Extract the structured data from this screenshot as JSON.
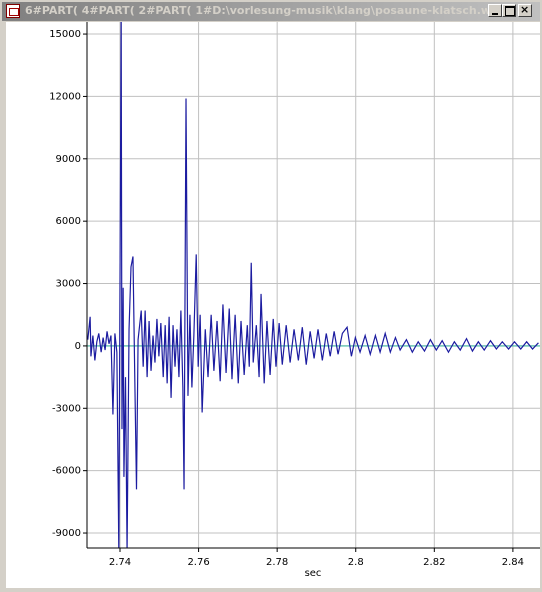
{
  "window": {
    "title": "6#PART( 4#PART( 2#PART( 1#D:\\vorlesung-musik\\klang\\posaune-klatsch.w..."
  },
  "chart_data": {
    "type": "line",
    "xlabel": "sec",
    "xlim": [
      2.7316,
      2.8469
    ],
    "ylim": [
      -9720,
      15580
    ],
    "xticks": [
      2.74,
      2.76,
      2.78,
      2.8,
      2.82,
      2.84
    ],
    "yticks": [
      -9000,
      -6000,
      -3000,
      0,
      3000,
      6000,
      9000,
      12000,
      15000
    ],
    "grid": true,
    "series": [
      {
        "color": "#1c1ca0",
        "x": [
          2.7318,
          2.7324,
          2.7326,
          2.7331,
          2.7336,
          2.7341,
          2.7346,
          2.7352,
          2.7357,
          2.7362,
          2.7367,
          2.7372,
          2.7377,
          2.7382,
          2.7387,
          2.7392,
          2.7397,
          2.7403,
          2.7405,
          2.7408,
          2.741,
          2.7414,
          2.7418,
          2.7423,
          2.7428,
          2.7433,
          2.7438,
          2.7442,
          2.7446,
          2.7454,
          2.7459,
          2.7464,
          2.7469,
          2.7474,
          2.7479,
          2.7484,
          2.7489,
          2.7494,
          2.7499,
          2.7504,
          2.751,
          2.7515,
          2.752,
          2.7525,
          2.753,
          2.7535,
          2.754,
          2.7545,
          2.755,
          2.7555,
          2.756,
          2.7563,
          2.7568,
          2.7573,
          2.7578,
          2.7583,
          2.7588,
          2.7594,
          2.7599,
          2.7604,
          2.7609,
          2.7617,
          2.7624,
          2.7632,
          2.7639,
          2.7647,
          2.7655,
          2.7662,
          2.767,
          2.7678,
          2.7685,
          2.7693,
          2.7701,
          2.7708,
          2.7716,
          2.7724,
          2.7729,
          2.7734,
          2.7739,
          2.7747,
          2.7754,
          2.7759,
          2.7767,
          2.7774,
          2.7782,
          2.779,
          2.7797,
          2.7805,
          2.7813,
          2.7823,
          2.7833,
          2.7843,
          2.7854,
          2.7864,
          2.7874,
          2.7884,
          2.7894,
          2.7904,
          2.7915,
          2.7925,
          2.7935,
          2.7945,
          2.7955,
          2.7966,
          2.7978,
          2.7989,
          2.7999,
          2.8011,
          2.8024,
          2.8037,
          2.805,
          2.8062,
          2.8075,
          2.8088,
          2.8101,
          2.8113,
          2.8129,
          2.8144,
          2.8159,
          2.8175,
          2.819,
          2.8205,
          2.822,
          2.8236,
          2.8251,
          2.8266,
          2.8282,
          2.8297,
          2.8312,
          2.8327,
          2.8343,
          2.8358,
          2.8373,
          2.8389,
          2.8404,
          2.842,
          2.8435,
          2.845,
          2.8465
        ],
        "values": [
          300,
          1400,
          -500,
          500,
          -700,
          200,
          600,
          -300,
          400,
          -200,
          700,
          100,
          500,
          -3300,
          600,
          -300,
          -9900,
          16000,
          -4000,
          2800,
          -6300,
          -1500,
          -9900,
          800,
          3800,
          4300,
          -2000,
          -6900,
          300,
          1700,
          -1000,
          1700,
          -1500,
          1200,
          -1200,
          500,
          -800,
          1300,
          -500,
          1100,
          -1500,
          1000,
          -1800,
          1400,
          -2500,
          1000,
          -1000,
          800,
          -1500,
          1700,
          -2000,
          -6900,
          11900,
          -2400,
          1500,
          -2000,
          500,
          4400,
          -1000,
          1500,
          -3200,
          800,
          -1500,
          1500,
          -1200,
          1200,
          -1700,
          2000,
          -1300,
          1800,
          -1600,
          1500,
          -1800,
          1200,
          -1400,
          1000,
          -1000,
          4000,
          -800,
          1000,
          -1500,
          2500,
          -1800,
          1200,
          -1400,
          1300,
          -1000,
          1100,
          -900,
          1000,
          -800,
          800,
          -700,
          900,
          -900,
          700,
          -600,
          800,
          -700,
          600,
          -500,
          700,
          -400,
          600,
          900,
          -500,
          400,
          -300,
          500,
          -400,
          500,
          -300,
          600,
          -300,
          400,
          -200,
          300,
          -300,
          200,
          -250,
          300,
          -200,
          250,
          -300,
          200,
          -200,
          350,
          -250,
          200,
          -200,
          250,
          -150,
          200,
          -150,
          200,
          -150,
          200,
          -150,
          150
        ]
      },
      {
        "color": "#40b8a0",
        "x": [
          2.7316,
          2.8469
        ],
        "values": [
          0,
          0
        ]
      }
    ]
  }
}
